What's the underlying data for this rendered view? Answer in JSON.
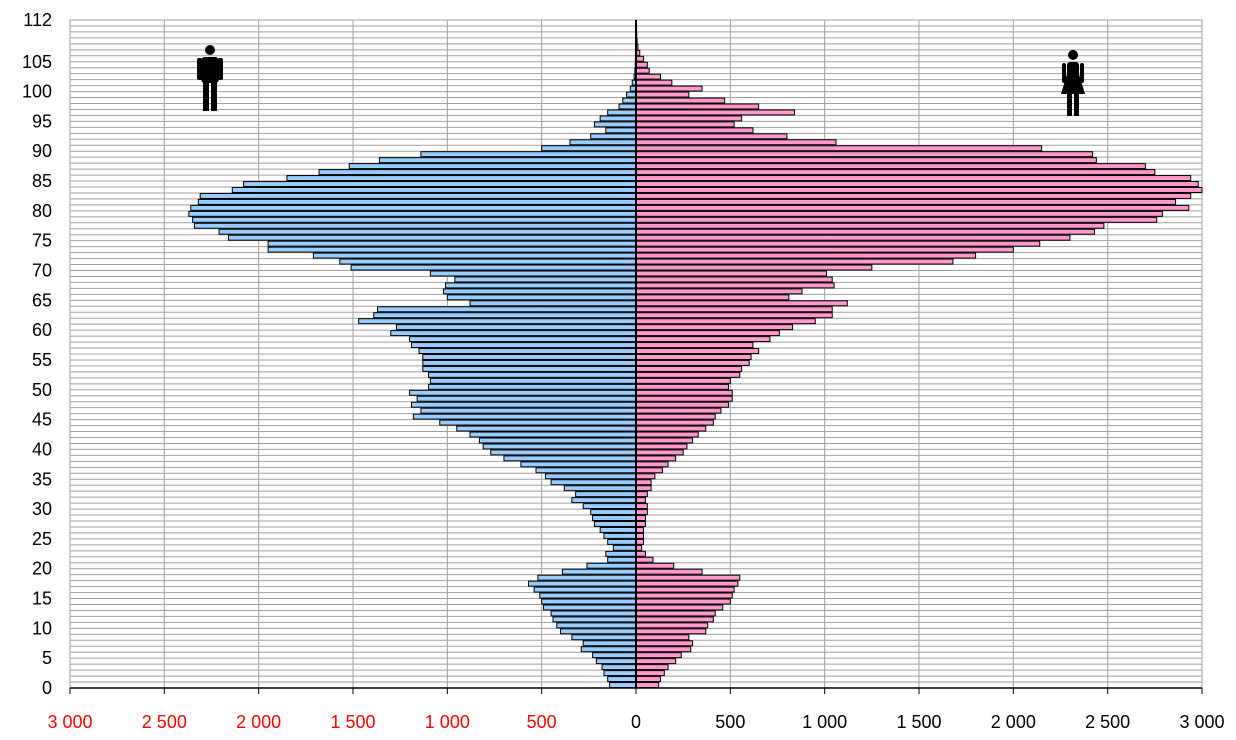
{
  "chart_data": {
    "type": "bar",
    "subtype": "population-pyramid",
    "orientation": "horizontal",
    "title": "",
    "xlabel": "",
    "ylabel": "",
    "age_axis": {
      "min": 0,
      "max": 112,
      "labeled_ticks": [
        0,
        5,
        10,
        15,
        20,
        25,
        30,
        35,
        40,
        45,
        50,
        55,
        60,
        65,
        70,
        75,
        80,
        85,
        90,
        95,
        100,
        105,
        112
      ]
    },
    "value_axis": {
      "min": -3000,
      "max": 3000,
      "ticks": [
        -3000,
        -2500,
        -2000,
        -1500,
        -1000,
        -500,
        0,
        500,
        1000,
        1500,
        2000,
        2500,
        3000
      ],
      "tick_labels": [
        "3 000",
        "2 500",
        "2 000",
        "1 500",
        "1 000",
        "500",
        "0",
        "500",
        "1 000",
        "1 500",
        "2 000",
        "2 500",
        "3 000"
      ],
      "negative_label_color": "#ff0000",
      "positive_label_color": "#000000"
    },
    "grid": true,
    "legend": "icons",
    "icons": {
      "left": "male-figure-icon",
      "right": "female-figure-icon"
    },
    "series": [
      {
        "side": "left",
        "color": "#99ccff",
        "ages": [
          0,
          1,
          2,
          3,
          4,
          5,
          6,
          7,
          8,
          9,
          10,
          11,
          12,
          13,
          14,
          15,
          16,
          17,
          18,
          19,
          20,
          21,
          22,
          23,
          24,
          25,
          26,
          27,
          28,
          29,
          30,
          31,
          32,
          33,
          34,
          35,
          36,
          37,
          38,
          39,
          40,
          41,
          42,
          43,
          44,
          45,
          46,
          47,
          48,
          49,
          50,
          51,
          52,
          53,
          54,
          55,
          56,
          57,
          58,
          59,
          60,
          61,
          62,
          63,
          64,
          65,
          66,
          67,
          68,
          69,
          70,
          71,
          72,
          73,
          74,
          75,
          76,
          77,
          78,
          79,
          80,
          81,
          82,
          83,
          84,
          85,
          86,
          87,
          88,
          89,
          90,
          91,
          92,
          93,
          94,
          95,
          96,
          97,
          98,
          99,
          100,
          101,
          102,
          103,
          104,
          105,
          106,
          107,
          108,
          109,
          110,
          111
        ],
        "values": [
          140,
          150,
          170,
          180,
          210,
          230,
          290,
          280,
          340,
          400,
          420,
          440,
          450,
          490,
          500,
          510,
          540,
          570,
          520,
          390,
          260,
          150,
          160,
          120,
          150,
          170,
          190,
          220,
          230,
          240,
          280,
          340,
          320,
          380,
          450,
          480,
          530,
          610,
          700,
          770,
          810,
          830,
          880,
          950,
          1040,
          1180,
          1140,
          1190,
          1160,
          1200,
          1100,
          1090,
          1100,
          1130,
          1130,
          1130,
          1150,
          1190,
          1200,
          1300,
          1270,
          1470,
          1390,
          1370,
          880,
          1000,
          1020,
          1010,
          960,
          1090,
          1510,
          1570,
          1710,
          1950,
          1950,
          2160,
          2210,
          2340,
          2350,
          2370,
          2360,
          2320,
          2310,
          2140,
          2080,
          1850,
          1680,
          1520,
          1360,
          1140,
          500,
          350,
          240,
          160,
          220,
          190,
          150,
          90,
          70,
          50,
          30,
          20,
          10,
          6,
          4,
          3,
          2,
          1,
          1,
          0,
          0,
          0
        ]
      },
      {
        "side": "right",
        "color": "#ff99cc",
        "ages": [
          0,
          1,
          2,
          3,
          4,
          5,
          6,
          7,
          8,
          9,
          10,
          11,
          12,
          13,
          14,
          15,
          16,
          17,
          18,
          19,
          20,
          21,
          22,
          23,
          24,
          25,
          26,
          27,
          28,
          29,
          30,
          31,
          32,
          33,
          34,
          35,
          36,
          37,
          38,
          39,
          40,
          41,
          42,
          43,
          44,
          45,
          46,
          47,
          48,
          49,
          50,
          51,
          52,
          53,
          54,
          55,
          56,
          57,
          58,
          59,
          60,
          61,
          62,
          63,
          64,
          65,
          66,
          67,
          68,
          69,
          70,
          71,
          72,
          73,
          74,
          75,
          76,
          77,
          78,
          79,
          80,
          81,
          82,
          83,
          84,
          85,
          86,
          87,
          88,
          89,
          90,
          91,
          92,
          93,
          94,
          95,
          96,
          97,
          98,
          99,
          100,
          101,
          102,
          103,
          104,
          105,
          106,
          107,
          108,
          109,
          110,
          111
        ],
        "values": [
          120,
          130,
          150,
          170,
          210,
          240,
          290,
          300,
          280,
          370,
          380,
          410,
          420,
          460,
          500,
          510,
          520,
          540,
          550,
          350,
          200,
          90,
          50,
          30,
          40,
          40,
          40,
          50,
          50,
          60,
          60,
          50,
          60,
          80,
          80,
          100,
          140,
          170,
          210,
          250,
          270,
          300,
          330,
          370,
          410,
          420,
          450,
          490,
          510,
          510,
          490,
          500,
          550,
          560,
          600,
          610,
          650,
          620,
          710,
          760,
          830,
          950,
          1040,
          1040,
          1120,
          810,
          880,
          1050,
          1040,
          1010,
          1250,
          1680,
          1800,
          2000,
          2140,
          2300,
          2430,
          2480,
          2760,
          2790,
          2930,
          2860,
          2940,
          3000,
          2980,
          2940,
          2750,
          2700,
          2440,
          2420,
          2150,
          1060,
          800,
          620,
          520,
          560,
          840,
          650,
          470,
          280,
          350,
          190,
          130,
          70,
          60,
          40,
          20,
          10,
          6,
          4,
          3,
          2
        ]
      }
    ]
  }
}
